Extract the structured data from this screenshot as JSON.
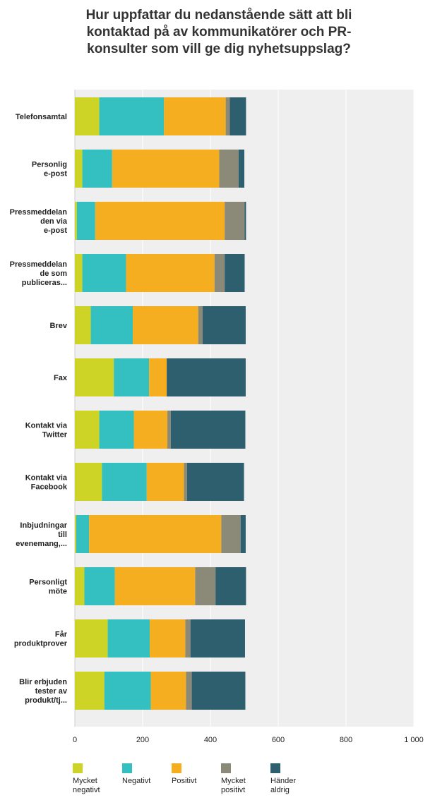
{
  "chart_data": {
    "type": "bar",
    "orientation": "horizontal",
    "stacked": true,
    "title": "Hur uppfattar du nedanstående sätt att bli kontaktad på av kommunikatörer och PR-konsulter som vill ge dig nyhetsuppslag?",
    "title_lines": [
      "Hur uppfattar du nedanstående sätt att bli",
      "kontaktad på av kommunikatörer och PR-",
      "konsulter som vill ge dig nyhetsuppslag?"
    ],
    "categories": [
      "Telefonsamtal",
      "Personlig e-post",
      "Pressmeddelanden via e-post",
      "Pressmeddelande som publiceras...",
      "Brev",
      "Fax",
      "Kontakt via Twitter",
      "Kontakt via Facebook",
      "Inbjudningar till evenemang,...",
      "Personligt möte",
      "Får produktprover",
      "Blir erbjuden tester av produkt/tj..."
    ],
    "category_lines": [
      [
        "Telefonsamtal"
      ],
      [
        "Personlig",
        "e-post"
      ],
      [
        "Pressmeddelan",
        "den via",
        "e-post"
      ],
      [
        "Pressmeddelan",
        "de som",
        "publiceras..."
      ],
      [
        "Brev"
      ],
      [
        "Fax"
      ],
      [
        "Kontakt via",
        "Twitter"
      ],
      [
        "Kontakt via",
        "Facebook"
      ],
      [
        "Inbjudningar",
        "till",
        "evenemang,..."
      ],
      [
        "Personligt",
        "möte"
      ],
      [
        "Får",
        "produktprover"
      ],
      [
        "Blir erbjuden",
        "tester av",
        "produkt/tj..."
      ]
    ],
    "series": [
      {
        "name": "Mycket negativt",
        "legend_lines": [
          "Mycket",
          "negativt"
        ],
        "color": "#cdd426",
        "values": [
          72,
          22,
          6,
          22,
          47,
          115,
          72,
          80,
          4,
          28,
          97,
          87
        ]
      },
      {
        "name": "Negativt",
        "legend_lines": [
          "Negativt"
        ],
        "color": "#34bfc1",
        "values": [
          191,
          88,
          54,
          129,
          124,
          104,
          102,
          132,
          38,
          90,
          124,
          137
        ]
      },
      {
        "name": "Positivt",
        "legend_lines": [
          "Positivt"
        ],
        "color": "#f6ae21",
        "values": [
          182,
          316,
          382,
          261,
          193,
          52,
          99,
          110,
          390,
          237,
          105,
          104
        ]
      },
      {
        "name": "Mycket positivt",
        "legend_lines": [
          "Mycket",
          "positivt"
        ],
        "color": "#8b8a79",
        "values": [
          12,
          57,
          59,
          30,
          13,
          0,
          10,
          9,
          57,
          60,
          15,
          17
        ]
      },
      {
        "name": "Händer aldrig",
        "legend_lines": [
          "Händer",
          "aldrig"
        ],
        "color": "#2d5f6e",
        "values": [
          48,
          17,
          4,
          59,
          127,
          233,
          220,
          168,
          15,
          90,
          161,
          158
        ]
      }
    ],
    "xlim": [
      0,
      1000
    ],
    "xticks": [
      0,
      200,
      400,
      600,
      800,
      1000
    ],
    "xtick_labels": [
      "0",
      "200",
      "400",
      "600",
      "800",
      "1 000"
    ],
    "grid": true,
    "legend_position": "bottom"
  }
}
